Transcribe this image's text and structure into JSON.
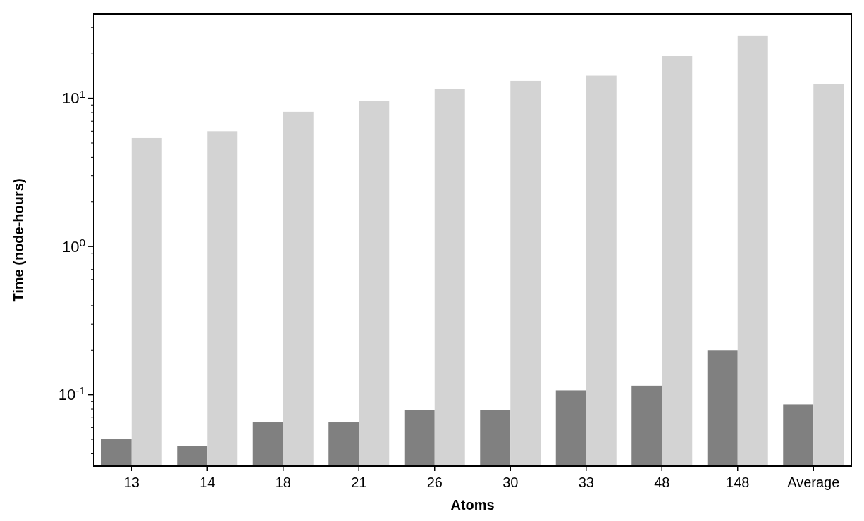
{
  "chart_data": {
    "type": "bar",
    "xlabel": "Atoms",
    "ylabel": "Time (node-hours)",
    "categories": [
      "13",
      "14",
      "18",
      "21",
      "26",
      "30",
      "33",
      "48",
      "148",
      "Average"
    ],
    "series": [
      {
        "color": "#808080",
        "values": [
          0.05,
          0.045,
          0.065,
          0.065,
          0.079,
          0.079,
          0.107,
          0.115,
          0.2,
          0.086
        ]
      },
      {
        "color": "#d3d3d3",
        "values": [
          5.4,
          6.0,
          8.1,
          9.6,
          11.6,
          13.1,
          14.2,
          19.2,
          26.4,
          12.4
        ]
      }
    ],
    "log": true,
    "ylim": [
      0.033,
      37
    ],
    "yticks": [
      {
        "value": 0.04,
        "label": null
      },
      {
        "value": 0.05,
        "label": null
      },
      {
        "value": 0.06,
        "label": null
      },
      {
        "value": 0.07,
        "label": null
      },
      {
        "value": 0.08,
        "label": null
      },
      {
        "value": 0.09,
        "label": null
      },
      {
        "value": 0.1,
        "label": "10$^{-1}$"
      },
      {
        "value": 0.2,
        "label": null
      },
      {
        "value": 0.3,
        "label": null
      },
      {
        "value": 0.4,
        "label": null
      },
      {
        "value": 0.5,
        "label": null
      },
      {
        "value": 0.6,
        "label": null
      },
      {
        "value": 0.7,
        "label": null
      },
      {
        "value": 0.8,
        "label": null
      },
      {
        "value": 0.9,
        "label": null
      },
      {
        "value": 1,
        "label": "10$^{0}$"
      },
      {
        "value": 2,
        "label": null
      },
      {
        "value": 3,
        "label": null
      },
      {
        "value": 4,
        "label": null
      },
      {
        "value": 5,
        "label": null
      },
      {
        "value": 6,
        "label": null
      },
      {
        "value": 7,
        "label": null
      },
      {
        "value": 8,
        "label": null
      },
      {
        "value": 9,
        "label": null
      },
      {
        "value": 10,
        "label": "10$^{1}$"
      },
      {
        "value": 20,
        "label": null
      },
      {
        "value": 30,
        "label": null
      }
    ],
    "grid": false
  }
}
